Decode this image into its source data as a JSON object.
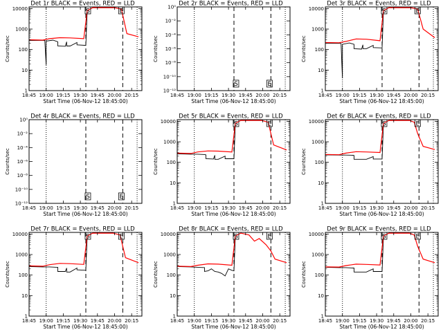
{
  "figure": {
    "xlabel": "Start Time (06-Nov-12 18:45:00)",
    "ylabel": "Counts/sec",
    "x_tick_labels": [
      "18:45",
      "19:00",
      "19:15",
      "19:30",
      "19:45",
      "20:00",
      "20:15"
    ],
    "log_tick_labels": [
      "1",
      "10",
      "100",
      "1000",
      "10000"
    ],
    "null_tick_labels": [
      "10⁰",
      "10⁻²",
      "10⁻⁴",
      "10⁻⁶",
      "10⁻⁸",
      "10⁻¹⁰",
      "10⁻¹²"
    ],
    "colors": {
      "events": "#000000",
      "lld": "#ff0000",
      "markers": "#000000"
    }
  },
  "chart_data": [
    {
      "type": "line",
      "title": "Det 1r BLACK = Events, RED = LLD",
      "yscale": "log",
      "ylim": [
        1,
        12000
      ],
      "xlim_hours": [
        18.75,
        20.4
      ],
      "grid": false,
      "vlines": {
        "dotted": [
          19.0,
          20.33
        ],
        "dashed": [
          19.58,
          20.12
        ]
      },
      "labels": [
        {
          "x": 19.61,
          "y": 11000,
          "text": "S"
        },
        {
          "x": 20.1,
          "y": 11000,
          "text": "E"
        }
      ],
      "series": [
        {
          "name": "Events",
          "color": "black",
          "x": [
            18.75,
            18.95,
            18.98,
            19.0,
            19.0,
            19.1,
            19.17,
            19.17,
            19.28,
            19.3,
            19.3,
            19.35,
            19.45,
            19.45,
            19.58,
            19.6
          ],
          "y": [
            280,
            280,
            280,
            18,
            260,
            290,
            240,
            150,
            145,
            240,
            150,
            150,
            220,
            170,
            160,
            8000
          ]
        },
        {
          "name": "LLD",
          "color": "red",
          "x": [
            18.75,
            18.95,
            19.05,
            19.2,
            19.35,
            19.55,
            19.6,
            19.68,
            20.0,
            20.1,
            20.18,
            20.35
          ],
          "y": [
            300,
            290,
            340,
            380,
            370,
            340,
            8000,
            11000,
            11000,
            9500,
            600,
            420
          ]
        }
      ]
    },
    {
      "type": "line",
      "title": "Det 2r BLACK = Events, RED = LLD",
      "yscale": "log",
      "ylim": [
        1e-12,
        1
      ],
      "xlim_hours": [
        18.75,
        20.4
      ],
      "grid": false,
      "vlines": {
        "dotted": [
          19.0,
          20.33
        ],
        "dashed": [
          19.58,
          20.12
        ]
      },
      "labels": [
        {
          "x": 19.61,
          "y": 1e-11,
          "text": "S"
        },
        {
          "x": 20.1,
          "y": 1e-11,
          "text": "E"
        }
      ],
      "series": []
    },
    {
      "type": "line",
      "title": "Det 3r BLACK = Events, RED = LLD",
      "yscale": "log",
      "ylim": [
        1,
        12000
      ],
      "xlim_hours": [
        18.75,
        20.4
      ],
      "grid": false,
      "vlines": {
        "dotted": [
          19.0,
          20.33
        ],
        "dashed": [
          19.58,
          20.12
        ]
      },
      "labels": [
        {
          "x": 19.61,
          "y": 11000,
          "text": "S"
        },
        {
          "x": 20.1,
          "y": 11000,
          "text": "E"
        }
      ],
      "series": [
        {
          "name": "Events",
          "color": "black",
          "x": [
            18.75,
            18.9,
            18.98,
            19.0,
            19.0,
            19.1,
            19.17,
            19.17,
            19.28,
            19.3,
            19.3,
            19.35,
            19.45,
            19.45,
            19.58,
            19.6
          ],
          "y": [
            200,
            200,
            200,
            4,
            180,
            210,
            180,
            110,
            105,
            170,
            110,
            110,
            160,
            125,
            120,
            8000
          ]
        },
        {
          "name": "LLD",
          "color": "red",
          "x": [
            18.75,
            18.95,
            19.05,
            19.2,
            19.35,
            19.55,
            19.6,
            19.68,
            20.0,
            20.1,
            20.18,
            20.35
          ],
          "y": [
            220,
            215,
            250,
            330,
            320,
            270,
            8000,
            11000,
            11000,
            9500,
            1000,
            380
          ]
        }
      ]
    },
    {
      "type": "line",
      "title": "Det 4r BLACK = Events, RED = LLD",
      "yscale": "log",
      "ylim": [
        1e-12,
        1
      ],
      "xlim_hours": [
        18.75,
        20.4
      ],
      "grid": false,
      "vlines": {
        "dotted": [
          19.0,
          20.33
        ],
        "dashed": [
          19.58,
          20.12
        ]
      },
      "labels": [
        {
          "x": 19.61,
          "y": 1e-11,
          "text": "S"
        },
        {
          "x": 20.1,
          "y": 1e-11,
          "text": "E"
        }
      ],
      "series": []
    },
    {
      "type": "line",
      "title": "Det 5r BLACK = Events, RED = LLD",
      "yscale": "log",
      "ylim": [
        1,
        12000
      ],
      "xlim_hours": [
        18.75,
        20.4
      ],
      "grid": false,
      "vlines": {
        "dotted": [
          19.0,
          20.33
        ],
        "dashed": [
          19.58,
          20.12
        ]
      },
      "labels": [
        {
          "x": 19.61,
          "y": 11000,
          "text": "S"
        },
        {
          "x": 20.1,
          "y": 11000,
          "text": "E"
        }
      ],
      "series": [
        {
          "name": "Events",
          "color": "black",
          "x": [
            18.75,
            18.95,
            19.05,
            19.15,
            19.17,
            19.17,
            19.28,
            19.3,
            19.3,
            19.35,
            19.45,
            19.45,
            19.58,
            19.6
          ],
          "y": [
            260,
            250,
            250,
            240,
            230,
            150,
            145,
            220,
            140,
            140,
            200,
            150,
            150,
            8000
          ]
        },
        {
          "name": "LLD",
          "color": "red",
          "x": [
            18.75,
            18.95,
            19.05,
            19.2,
            19.35,
            19.55,
            19.6,
            19.68,
            19.98,
            20.08,
            20.16,
            20.35
          ],
          "y": [
            280,
            270,
            320,
            360,
            350,
            320,
            8000,
            11000,
            11000,
            9000,
            700,
            400
          ]
        }
      ]
    },
    {
      "type": "line",
      "title": "Det 6r BLACK = Events, RED = LLD",
      "yscale": "log",
      "ylim": [
        1,
        12000
      ],
      "xlim_hours": [
        18.75,
        20.4
      ],
      "grid": false,
      "vlines": {
        "dotted": [
          19.0,
          20.33
        ],
        "dashed": [
          19.58,
          20.12
        ]
      },
      "labels": [
        {
          "x": 19.61,
          "y": 11000,
          "text": "S"
        },
        {
          "x": 20.1,
          "y": 11000,
          "text": "E"
        }
      ],
      "series": [
        {
          "name": "Events",
          "color": "black",
          "x": [
            18.75,
            18.95,
            19.05,
            19.15,
            19.17,
            19.17,
            19.3,
            19.3,
            19.35,
            19.45,
            19.45,
            19.58,
            19.6
          ],
          "y": [
            230,
            225,
            225,
            220,
            215,
            140,
            140,
            140,
            140,
            190,
            145,
            145,
            8000
          ]
        },
        {
          "name": "LLD",
          "color": "red",
          "x": [
            18.75,
            18.95,
            19.05,
            19.2,
            19.35,
            19.55,
            19.6,
            19.68,
            19.98,
            20.05,
            20.1,
            20.18,
            20.35
          ],
          "y": [
            240,
            235,
            280,
            330,
            320,
            300,
            8000,
            11000,
            11000,
            9000,
            2500,
            600,
            420
          ]
        }
      ]
    },
    {
      "type": "line",
      "title": "Det 7r BLACK = Events, RED = LLD",
      "yscale": "log",
      "ylim": [
        1,
        12000
      ],
      "xlim_hours": [
        18.75,
        20.4
      ],
      "grid": false,
      "vlines": {
        "dotted": [
          19.0,
          20.33
        ],
        "dashed": [
          19.58,
          20.12
        ]
      },
      "labels": [
        {
          "x": 19.61,
          "y": 11000,
          "text": "S"
        },
        {
          "x": 20.1,
          "y": 11000,
          "text": "E"
        }
      ],
      "series": [
        {
          "name": "Events",
          "color": "black",
          "x": [
            18.75,
            18.95,
            19.05,
            19.15,
            19.17,
            19.17,
            19.28,
            19.3,
            19.3,
            19.35,
            19.45,
            19.45,
            19.58,
            19.6
          ],
          "y": [
            260,
            250,
            250,
            240,
            240,
            150,
            150,
            220,
            140,
            140,
            220,
            180,
            170,
            8000
          ]
        },
        {
          "name": "LLD",
          "color": "red",
          "x": [
            18.75,
            18.95,
            19.05,
            19.2,
            19.35,
            19.55,
            19.6,
            19.68,
            19.98,
            20.08,
            20.16,
            20.35
          ],
          "y": [
            280,
            270,
            320,
            370,
            360,
            330,
            8000,
            11000,
            11000,
            9000,
            700,
            400
          ]
        }
      ]
    },
    {
      "type": "line",
      "title": "Det 8r BLACK = Events, RED = LLD",
      "yscale": "log",
      "ylim": [
        1,
        12000
      ],
      "xlim_hours": [
        18.75,
        20.4
      ],
      "grid": false,
      "vlines": {
        "dotted": [
          19.0,
          20.33
        ],
        "dashed": [
          19.58,
          20.12
        ]
      },
      "labels": [
        {
          "x": 19.61,
          "y": 11000,
          "text": "S"
        },
        {
          "x": 20.1,
          "y": 11000,
          "text": "E"
        }
      ],
      "series": [
        {
          "name": "Events",
          "color": "black",
          "x": [
            18.75,
            18.95,
            19.05,
            19.15,
            19.15,
            19.2,
            19.25,
            19.3,
            19.35,
            19.4,
            19.45,
            19.5,
            19.55,
            19.58,
            19.6
          ],
          "y": [
            260,
            250,
            240,
            230,
            150,
            160,
            200,
            150,
            140,
            120,
            90,
            200,
            170,
            160,
            8000
          ]
        },
        {
          "name": "LLD",
          "color": "red",
          "x": [
            18.75,
            18.95,
            19.05,
            19.2,
            19.35,
            19.55,
            19.6,
            19.68,
            19.8,
            19.88,
            19.95,
            20.05,
            20.12,
            20.18,
            20.35
          ],
          "y": [
            270,
            260,
            300,
            350,
            340,
            300,
            8000,
            11000,
            9000,
            4500,
            6000,
            3000,
            1500,
            600,
            400
          ]
        }
      ]
    },
    {
      "type": "line",
      "title": "Det 9r BLACK = Events, RED = LLD",
      "yscale": "log",
      "ylim": [
        1,
        12000
      ],
      "xlim_hours": [
        18.75,
        20.4
      ],
      "grid": false,
      "vlines": {
        "dotted": [
          19.0,
          20.33
        ],
        "dashed": [
          19.58,
          20.12
        ]
      },
      "labels": [
        {
          "x": 19.61,
          "y": 11000,
          "text": "S"
        },
        {
          "x": 20.1,
          "y": 11000,
          "text": "E"
        }
      ],
      "series": [
        {
          "name": "Events",
          "color": "black",
          "x": [
            18.75,
            18.95,
            19.05,
            19.15,
            19.17,
            19.17,
            19.3,
            19.3,
            19.35,
            19.45,
            19.45,
            19.58,
            19.6
          ],
          "y": [
            240,
            230,
            230,
            220,
            220,
            140,
            140,
            140,
            140,
            200,
            150,
            150,
            8000
          ]
        },
        {
          "name": "LLD",
          "color": "red",
          "x": [
            18.75,
            18.95,
            19.05,
            19.2,
            19.35,
            19.55,
            19.6,
            19.68,
            19.98,
            20.05,
            20.1,
            20.18,
            20.35
          ],
          "y": [
            250,
            245,
            290,
            340,
            330,
            310,
            8000,
            11000,
            11000,
            9000,
            2500,
            600,
            400
          ]
        }
      ]
    }
  ]
}
